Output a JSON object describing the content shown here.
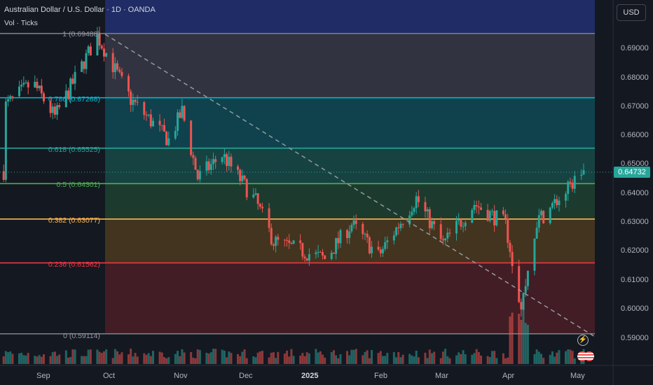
{
  "header": {
    "title": "Australian Dollar / U.S. Dollar · 1D · OANDA",
    "subtitle": "Vol · Ticks"
  },
  "currency_button": "USD",
  "last_price": "0.64732",
  "y_axis_labels": [
    "0.69000",
    "0.68000",
    "0.67000",
    "0.66000",
    "0.65000",
    "0.64000",
    "0.63000",
    "0.62000",
    "0.61000",
    "0.60000",
    "0.59000"
  ],
  "x_axis_labels": [
    "Sep",
    "Oct",
    "Nov",
    "Dec",
    "2025",
    "Feb",
    "Mar",
    "Apr",
    "May"
  ],
  "fib_labels": [
    "1 (0.69488)",
    "0.786 (0.67268)",
    "0.618 (0.65525)",
    "0.5 (0.64301)",
    "0.382 (0.63077)",
    "0.236 (0.61562)",
    "0 (0.59114)"
  ],
  "colors": {
    "up": "#26a69a",
    "down": "#ef5350",
    "background": "#141821",
    "fib_1": "#787b86",
    "fib_0786": "#00bcd4",
    "fib_0618": "#26a69a",
    "fib_05": "#4caf50",
    "fib_0382": "#ffb74d",
    "fib_0236": "#f23645",
    "fib_0": "#787b86"
  },
  "chart_data": {
    "type": "candlestick",
    "symbol": "AUDUSD",
    "timeframe": "1D",
    "ylim": [
      0.585,
      0.7
    ],
    "fibonacci": [
      {
        "level": 1,
        "price": 0.69488
      },
      {
        "level": 0.786,
        "price": 0.67268
      },
      {
        "level": 0.618,
        "price": 0.65525
      },
      {
        "level": 0.5,
        "price": 0.64301
      },
      {
        "level": 0.382,
        "price": 0.63077
      },
      {
        "level": 0.236,
        "price": 0.61562
      },
      {
        "level": 0,
        "price": 0.59114
      }
    ],
    "approx_path": [
      {
        "date": "2024-08-20",
        "close": 0.67
      },
      {
        "date": "2024-09-01",
        "close": 0.678
      },
      {
        "date": "2024-09-11",
        "close": 0.666
      },
      {
        "date": "2024-09-30",
        "close": 0.694
      },
      {
        "date": "2024-10-15",
        "close": 0.672
      },
      {
        "date": "2024-11-01",
        "close": 0.658
      },
      {
        "date": "2024-11-07",
        "close": 0.668
      },
      {
        "date": "2024-11-14",
        "close": 0.645
      },
      {
        "date": "2024-11-25",
        "close": 0.653
      },
      {
        "date": "2024-12-10",
        "close": 0.637
      },
      {
        "date": "2024-12-18",
        "close": 0.623
      },
      {
        "date": "2025-01-10",
        "close": 0.617
      },
      {
        "date": "2025-01-22",
        "close": 0.629
      },
      {
        "date": "2025-02-03",
        "close": 0.618
      },
      {
        "date": "2025-02-20",
        "close": 0.638
      },
      {
        "date": "2025-03-04",
        "close": 0.622
      },
      {
        "date": "2025-03-18",
        "close": 0.636
      },
      {
        "date": "2025-04-01",
        "close": 0.629
      },
      {
        "date": "2025-04-08",
        "close": 0.6
      },
      {
        "date": "2025-04-15",
        "close": 0.63
      },
      {
        "date": "2025-04-28",
        "close": 0.64
      },
      {
        "date": "2025-05-05",
        "close": 0.64732
      }
    ]
  }
}
